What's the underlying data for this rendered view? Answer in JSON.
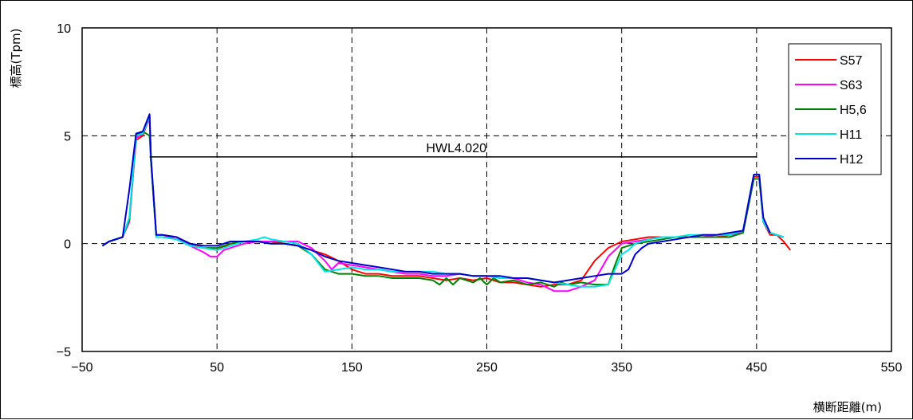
{
  "chart_data": {
    "type": "line",
    "title": "",
    "xlabel": "横断距離(m)",
    "ylabel": "標高(Tpm)",
    "xlim": [
      -50,
      550
    ],
    "ylim": [
      -5,
      10
    ],
    "x_ticks": [
      -50,
      50,
      150,
      250,
      350,
      450,
      550
    ],
    "y_ticks": [
      -5,
      0,
      5,
      10
    ],
    "x_tick_labels": [
      "−50",
      "50",
      "150",
      "250",
      "350",
      "450",
      "550"
    ],
    "y_tick_labels": [
      "−5",
      "0",
      "5",
      "10"
    ],
    "grid": "dashed",
    "legend_position": "top-right",
    "annotations": [
      {
        "text": "HWL4.020",
        "x_start": 0,
        "x_end": 450,
        "y": 4.02
      }
    ],
    "colors": {
      "S57": "#ff0000",
      "S63": "#ff00ff",
      "H5,6": "#008000",
      "H11": "#00e5e5",
      "H12": "#0000cc",
      "hwl": "#000000"
    },
    "series": [
      {
        "name": "S57",
        "x": [
          -35,
          -30,
          -20,
          -15,
          -10,
          -5,
          0,
          1,
          5,
          10,
          20,
          30,
          40,
          50,
          60,
          70,
          80,
          90,
          100,
          110,
          120,
          130,
          140,
          150,
          160,
          170,
          180,
          190,
          200,
          210,
          220,
          230,
          240,
          250,
          260,
          270,
          280,
          290,
          300,
          310,
          320,
          330,
          340,
          350,
          360,
          370,
          380,
          390,
          400,
          410,
          420,
          430,
          440,
          448,
          452,
          455,
          460,
          465,
          470,
          475
        ],
        "y": [
          -0.1,
          0.1,
          0.3,
          1.2,
          4.8,
          5.0,
          5.9,
          3.9,
          0.4,
          0.4,
          0.3,
          0.0,
          -0.2,
          -0.3,
          0.0,
          0.1,
          0.1,
          0.1,
          0.0,
          -0.1,
          -0.3,
          -0.5,
          -0.8,
          -1.2,
          -1.4,
          -1.4,
          -1.5,
          -1.5,
          -1.5,
          -1.6,
          -1.7,
          -1.6,
          -1.7,
          -1.6,
          -1.8,
          -1.8,
          -1.9,
          -2.0,
          -1.9,
          -1.9,
          -1.7,
          -0.8,
          -0.2,
          0.1,
          0.2,
          0.3,
          0.3,
          0.3,
          0.3,
          0.3,
          0.3,
          0.4,
          0.6,
          3.1,
          3.1,
          1.0,
          0.4,
          0.4,
          0.1,
          -0.3
        ]
      },
      {
        "name": "S63",
        "x": [
          -35,
          -30,
          -20,
          -15,
          -10,
          -5,
          0,
          1,
          5,
          10,
          20,
          30,
          40,
          45,
          50,
          55,
          60,
          70,
          80,
          90,
          100,
          110,
          120,
          130,
          135,
          140,
          150,
          160,
          170,
          180,
          190,
          200,
          210,
          220,
          230,
          240,
          250,
          260,
          270,
          280,
          290,
          300,
          310,
          320,
          330,
          340,
          350,
          360,
          370,
          380,
          390,
          400,
          410,
          420,
          430,
          440,
          448,
          452,
          455,
          460,
          470
        ],
        "y": [
          -0.1,
          0.1,
          0.3,
          1.0,
          4.9,
          5.1,
          5.8,
          3.9,
          0.3,
          0.3,
          0.3,
          -0.1,
          -0.4,
          -0.6,
          -0.6,
          -0.3,
          -0.2,
          0.0,
          0.1,
          0.1,
          0.1,
          0.1,
          -0.2,
          -0.8,
          -1.2,
          -0.9,
          -1.0,
          -1.1,
          -1.2,
          -1.3,
          -1.4,
          -1.4,
          -1.5,
          -1.5,
          -1.4,
          -1.5,
          -1.5,
          -1.6,
          -1.6,
          -1.8,
          -1.9,
          -2.2,
          -2.2,
          -2.0,
          -1.7,
          -0.6,
          0.0,
          0.1,
          0.2,
          0.3,
          0.3,
          0.3,
          0.3,
          0.4,
          0.4,
          0.5,
          3.0,
          3.0,
          1.0,
          0.5,
          0.3
        ]
      },
      {
        "name": "H5,6",
        "x": [
          -35,
          -30,
          -20,
          -15,
          -10,
          -5,
          0,
          1,
          5,
          10,
          20,
          30,
          40,
          50,
          60,
          70,
          80,
          90,
          100,
          110,
          120,
          130,
          140,
          150,
          160,
          170,
          180,
          190,
          200,
          210,
          215,
          220,
          225,
          230,
          240,
          245,
          250,
          255,
          260,
          270,
          280,
          290,
          300,
          305,
          310,
          320,
          330,
          340,
          345,
          350,
          360,
          370,
          380,
          390,
          400,
          410,
          420,
          430,
          440,
          448,
          452,
          455,
          460,
          470
        ],
        "y": [
          -0.1,
          0.1,
          0.3,
          1.1,
          5.0,
          5.2,
          5.0,
          3.8,
          0.3,
          0.3,
          0.2,
          -0.1,
          -0.2,
          -0.2,
          0.0,
          0.1,
          0.1,
          0.0,
          0.0,
          -0.1,
          -0.5,
          -1.2,
          -1.4,
          -1.4,
          -1.5,
          -1.5,
          -1.6,
          -1.6,
          -1.6,
          -1.7,
          -1.9,
          -1.6,
          -1.9,
          -1.6,
          -1.8,
          -1.6,
          -1.9,
          -1.6,
          -1.8,
          -1.7,
          -1.9,
          -1.8,
          -2.0,
          -1.8,
          -1.9,
          -1.8,
          -1.9,
          -1.9,
          -1.0,
          -0.2,
          0.0,
          0.1,
          0.2,
          0.3,
          0.3,
          0.3,
          0.3,
          0.3,
          0.5,
          3.0,
          3.0,
          1.0,
          0.5,
          0.3
        ]
      },
      {
        "name": "H11",
        "x": [
          -35,
          -30,
          -20,
          -15,
          -10,
          -5,
          0,
          1,
          5,
          10,
          20,
          30,
          40,
          50,
          60,
          70,
          80,
          85,
          90,
          100,
          110,
          120,
          130,
          140,
          150,
          160,
          170,
          180,
          190,
          200,
          210,
          220,
          230,
          240,
          250,
          260,
          270,
          280,
          290,
          300,
          310,
          320,
          330,
          340,
          345,
          350,
          355,
          360,
          370,
          380,
          390,
          400,
          410,
          420,
          430,
          440,
          448,
          452,
          455,
          460,
          470
        ],
        "y": [
          -0.1,
          0.1,
          0.3,
          1.2,
          5.0,
          5.1,
          5.9,
          4.0,
          0.3,
          0.3,
          0.2,
          -0.1,
          -0.2,
          -0.3,
          -0.1,
          0.1,
          0.2,
          0.3,
          0.2,
          0.1,
          0.0,
          -0.5,
          -1.3,
          -1.2,
          -1.1,
          -1.2,
          -1.2,
          -1.3,
          -1.3,
          -1.3,
          -1.3,
          -1.4,
          -1.4,
          -1.5,
          -1.5,
          -1.6,
          -1.6,
          -1.6,
          -1.7,
          -1.8,
          -1.9,
          -2.0,
          -2.0,
          -1.9,
          -1.2,
          -0.5,
          -0.3,
          0.0,
          0.2,
          0.3,
          0.3,
          0.4,
          0.4,
          0.4,
          0.4,
          0.6,
          3.2,
          3.2,
          1.0,
          0.5,
          0.3
        ]
      },
      {
        "name": "H12",
        "x": [
          -35,
          -30,
          -20,
          -15,
          -10,
          -5,
          0,
          1,
          5,
          10,
          20,
          30,
          40,
          50,
          60,
          70,
          80,
          90,
          100,
          110,
          120,
          130,
          140,
          150,
          160,
          170,
          180,
          190,
          200,
          210,
          220,
          230,
          240,
          250,
          260,
          270,
          280,
          290,
          300,
          310,
          320,
          330,
          340,
          350,
          355,
          360,
          365,
          370,
          380,
          390,
          400,
          410,
          420,
          430,
          440,
          448,
          452,
          455,
          460
        ],
        "y": [
          -0.1,
          0.1,
          0.3,
          2.5,
          5.1,
          5.2,
          6.0,
          4.0,
          0.4,
          0.4,
          0.3,
          0.0,
          -0.1,
          -0.1,
          0.1,
          0.1,
          0.1,
          0.0,
          0.0,
          -0.1,
          -0.3,
          -0.6,
          -0.8,
          -0.9,
          -1.0,
          -1.1,
          -1.2,
          -1.3,
          -1.3,
          -1.4,
          -1.4,
          -1.4,
          -1.5,
          -1.5,
          -1.5,
          -1.6,
          -1.6,
          -1.7,
          -1.8,
          -1.7,
          -1.6,
          -1.5,
          -1.4,
          -1.4,
          -1.2,
          -0.5,
          -0.2,
          0.0,
          0.1,
          0.2,
          0.3,
          0.4,
          0.4,
          0.5,
          0.6,
          3.2,
          3.2,
          1.2,
          0.5
        ]
      }
    ]
  }
}
